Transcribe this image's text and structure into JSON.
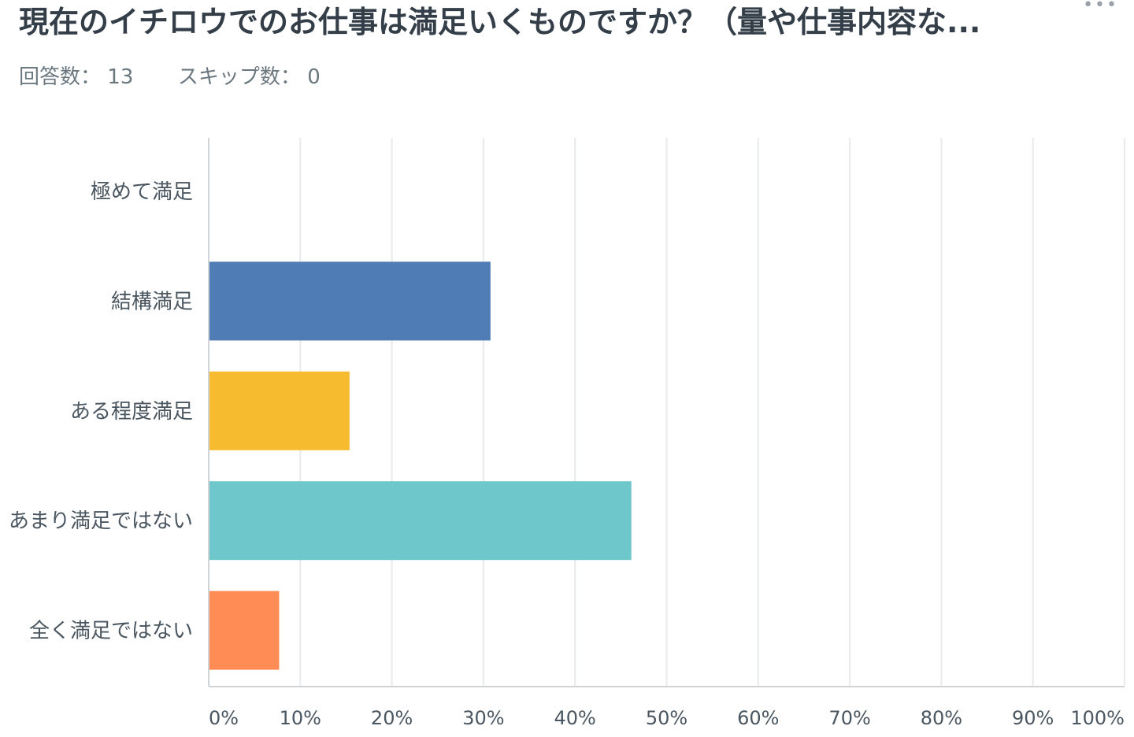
{
  "question": {
    "title": "現在のイチロウでのお仕事は満足いくものですか？（量や仕事内容な...",
    "more_icon": "ellipsis-icon"
  },
  "stats": {
    "answered_label": "回答数：",
    "answered_value": "13",
    "skipped_label": "スキップ数：",
    "skipped_value": "0"
  },
  "chart_data": {
    "type": "bar",
    "orientation": "horizontal",
    "categories": [
      "極めて満足",
      "結構満足",
      "ある程度満足",
      "あまり満足ではない",
      "全く満足ではない"
    ],
    "values": [
      0,
      30.77,
      15.38,
      46.15,
      7.69
    ],
    "unit": "%",
    "xlim": [
      0,
      100
    ],
    "x_ticks": [
      "0%",
      "10%",
      "20%",
      "30%",
      "40%",
      "50%",
      "60%",
      "70%",
      "80%",
      "90%",
      "100%"
    ],
    "colors": [
      "#507cb6",
      "#507cb6",
      "#f6bb2f",
      "#6ec8cb",
      "#ff8b55"
    ],
    "grid": true,
    "grid_color": "#e8eaeb",
    "axis_color": "#d0d4d6",
    "label_color": "#4a5660"
  }
}
